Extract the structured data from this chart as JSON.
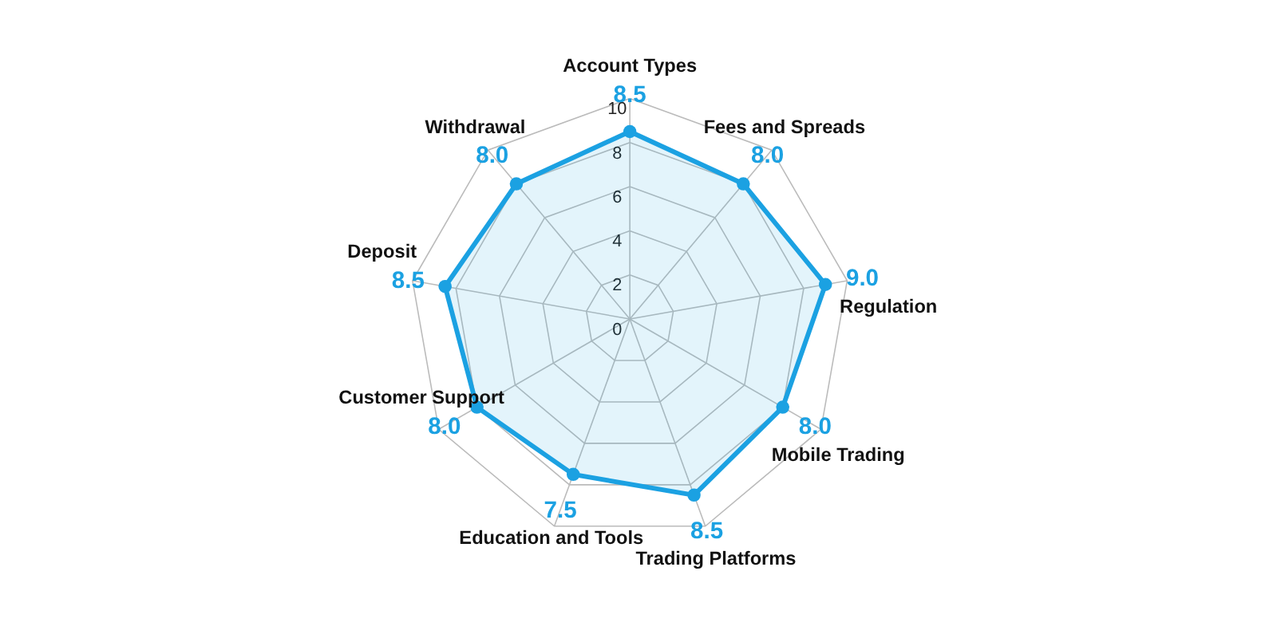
{
  "chart_data": {
    "type": "radar",
    "categories": [
      "Account Types",
      "Fees and Spreads",
      "Regulation",
      "Mobile Trading",
      "Trading Platforms",
      "Education and Tools",
      "Customer Support",
      "Deposit",
      "Withdrawal"
    ],
    "series": [
      {
        "color": "#1ba1e2",
        "values": [
          8.5,
          8.0,
          9.0,
          8.0,
          8.5,
          7.5,
          8.0,
          8.5,
          8.0
        ],
        "value_labels": [
          "8.5",
          "8.0",
          "9.0",
          "8.0",
          "8.5",
          "7.5",
          "8.0",
          "8.5",
          "8.0"
        ]
      }
    ],
    "ylim": [
      0,
      10
    ],
    "yticks": [
      0,
      2,
      4,
      6,
      8,
      10
    ],
    "grid": true,
    "marker": "circle",
    "line_style": "solid"
  }
}
